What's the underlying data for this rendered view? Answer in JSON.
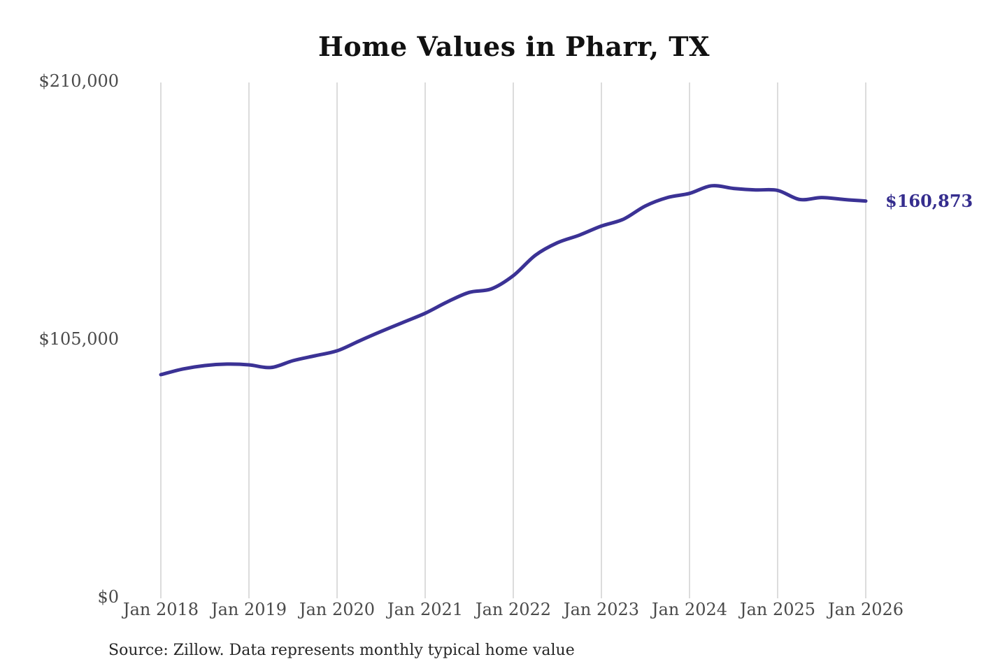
{
  "chart_data": {
    "type": "line",
    "title": "Home Values in Pharr, TX",
    "source": "Source: Zillow. Data represents monthly typical home value",
    "series_name": "Typical home value",
    "end_label": "$160,873",
    "end_value": 160873,
    "ylim": [
      0,
      210000
    ],
    "xlim_years": [
      2018,
      2026
    ],
    "grid": "vertical-only",
    "legend": "none",
    "line_color": "#3b3295",
    "label_color": "#352d8e",
    "grid_color": "#c9c9c9",
    "axis_text_color": "#4a4a4a",
    "y_ticks": [
      {
        "value": 210000,
        "label": "$210,000"
      },
      {
        "value": 105000,
        "label": "$105,000"
      },
      {
        "value": 0,
        "label": "$0"
      }
    ],
    "x_ticks": [
      {
        "year": 2018,
        "label": "Jan 2018"
      },
      {
        "year": 2019,
        "label": "Jan 2019"
      },
      {
        "year": 2020,
        "label": "Jan 2020"
      },
      {
        "year": 2021,
        "label": "Jan 2021"
      },
      {
        "year": 2022,
        "label": "Jan 2022"
      },
      {
        "year": 2023,
        "label": "Jan 2023"
      },
      {
        "year": 2024,
        "label": "Jan 2024"
      },
      {
        "year": 2025,
        "label": "Jan 2025"
      },
      {
        "year": 2026,
        "label": "Jan 2026"
      }
    ],
    "x": [
      "2018-01",
      "2018-04",
      "2018-07",
      "2018-10",
      "2019-01",
      "2019-04",
      "2019-07",
      "2019-10",
      "2020-01",
      "2020-04",
      "2020-07",
      "2020-10",
      "2021-01",
      "2021-04",
      "2021-07",
      "2021-10",
      "2022-01",
      "2022-04",
      "2022-07",
      "2022-10",
      "2023-01",
      "2023-04",
      "2023-07",
      "2023-10",
      "2024-01",
      "2024-04",
      "2024-07",
      "2024-10",
      "2025-01",
      "2025-04",
      "2025-07",
      "2025-10",
      "2026-01"
    ],
    "values": [
      90200,
      92500,
      93900,
      94500,
      94200,
      93100,
      95900,
      97900,
      99900,
      103900,
      107800,
      111500,
      115200,
      119800,
      123700,
      125100,
      130500,
      138800,
      143900,
      147000,
      150700,
      153500,
      158900,
      162300,
      164000,
      167100,
      166000,
      165400,
      165200,
      161500,
      162300,
      161500,
      160873
    ]
  }
}
